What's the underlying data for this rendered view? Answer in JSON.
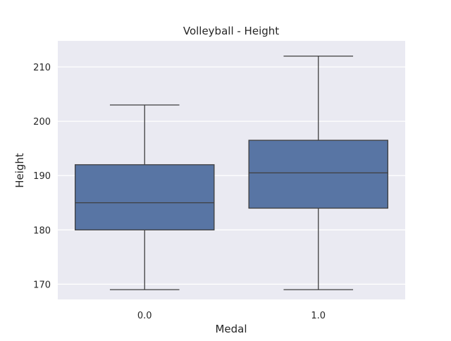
{
  "chart_data": {
    "type": "box",
    "title": "Volleyball - Height",
    "xlabel": "Medal",
    "ylabel": "Height",
    "categories": [
      "0.0",
      "1.0"
    ],
    "boxes": [
      {
        "category": "0.0",
        "whisker_low": 169,
        "q1": 180,
        "median": 185,
        "q3": 192,
        "whisker_high": 203
      },
      {
        "category": "1.0",
        "whisker_low": 169,
        "q1": 184,
        "median": 190.5,
        "q3": 196.5,
        "whisker_high": 212
      }
    ],
    "ylim": [
      167.2,
      214.8
    ],
    "yticks": [
      170,
      180,
      190,
      200,
      210
    ],
    "grid": true,
    "colors": {
      "box_fill": "#5875a4",
      "box_edge": "#3f3f3f",
      "plot_background": "#eaeaf2",
      "grid": "#ffffff"
    }
  }
}
